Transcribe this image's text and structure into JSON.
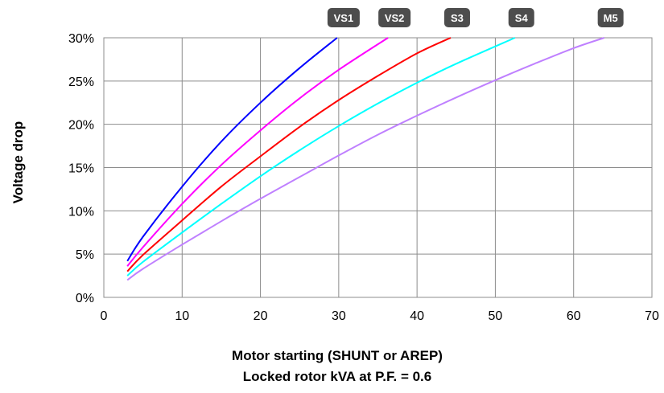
{
  "chart_data": {
    "type": "line",
    "title": "",
    "xlabel": "",
    "ylabel": "Voltage drop",
    "xlabel_lines": [
      "Motor starting (SHUNT or AREP)",
      "Locked rotor kVA at P.F. = 0.6"
    ],
    "xlim": [
      0,
      70
    ],
    "ylim": [
      0,
      30
    ],
    "x_ticks": [
      "0",
      "10",
      "20",
      "30",
      "40",
      "50",
      "60",
      "70"
    ],
    "y_ticks": [
      "0%",
      "5%",
      "10%",
      "15%",
      "20%",
      "25%",
      "30%"
    ],
    "grid": true,
    "legend": "labels at line ends",
    "series": [
      {
        "name": "VS1",
        "color": "#0000ff",
        "x": [
          3,
          5,
          10,
          15,
          20,
          25,
          29.8
        ],
        "y": [
          4.2,
          7,
          12.8,
          18,
          22.5,
          26.5,
          30
        ]
      },
      {
        "name": "VS2",
        "color": "#ff00ff",
        "x": [
          3,
          5,
          10,
          15,
          20,
          25,
          30,
          36.3
        ],
        "y": [
          3.6,
          5.8,
          10.8,
          15.3,
          19.3,
          23,
          26.3,
          30
        ]
      },
      {
        "name": "S3",
        "color": "#ff0000",
        "x": [
          3,
          5,
          10,
          15,
          20,
          25,
          30,
          35,
          40,
          44.3
        ],
        "y": [
          3,
          4.9,
          8.9,
          12.8,
          16.3,
          19.7,
          22.8,
          25.6,
          28.2,
          30
        ]
      },
      {
        "name": "S4",
        "color": "#00ffff",
        "x": [
          3,
          5,
          10,
          15,
          20,
          25,
          30,
          35,
          40,
          45,
          52.5
        ],
        "y": [
          2.5,
          4.1,
          7.5,
          10.8,
          14,
          17,
          19.8,
          22.4,
          24.8,
          27,
          30
        ]
      },
      {
        "name": "M5",
        "color": "#bf80ff",
        "x": [
          3,
          5,
          10,
          15,
          20,
          25,
          30,
          35,
          40,
          45,
          50,
          55,
          60,
          63.9
        ],
        "y": [
          2,
          3.3,
          6.1,
          8.8,
          11.4,
          13.9,
          16.4,
          18.8,
          21,
          23.1,
          25.1,
          27,
          28.8,
          30
        ]
      }
    ]
  }
}
